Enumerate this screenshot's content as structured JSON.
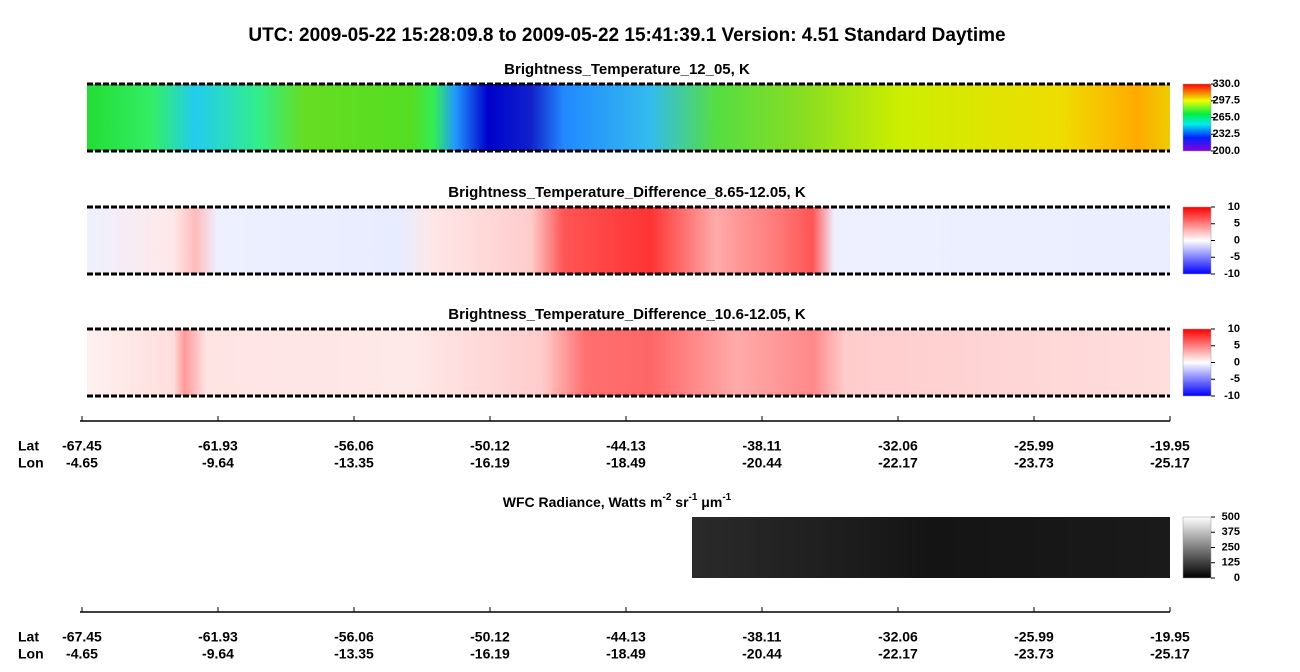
{
  "title": "UTC:  2009-05-22   15:28:09.8  to  2009-05-22   15:41:39.1    Version: 4.51  Standard Daytime",
  "panels": [
    {
      "title": "Brightness_Temperature_12_05, K",
      "clim": [
        200,
        330
      ],
      "cticks": [
        {
          "value": 330,
          "label": "330.0"
        },
        297.5,
        {
          "value": 265,
          "label": "265.0"
        },
        232.5,
        {
          "value": 200,
          "label": "200.0"
        }
      ]
    },
    {
      "title": "Brightness_Temperature_Difference_8.65-12.05, K",
      "clim": [
        -10,
        10
      ],
      "cticks": [
        10,
        5,
        0,
        -5,
        -10
      ]
    },
    {
      "title": "Brightness_Temperature_Difference_10.6-12.05, K",
      "clim": [
        -10,
        10
      ],
      "cticks": [
        10,
        5,
        0,
        -5,
        -10
      ]
    }
  ],
  "wfc": {
    "title_parts": [
      "WFC Radiance, Watts m",
      "-2",
      " sr",
      "-1",
      " μm",
      "-1"
    ],
    "clim": [
      0,
      500
    ],
    "cticks": [
      500,
      375,
      250,
      125,
      0
    ]
  },
  "track": {
    "lat_label": "Lat",
    "lon_label": "Lon",
    "lat": [
      -67.45,
      -61.93,
      -56.06,
      -50.12,
      -44.13,
      -38.11,
      -32.06,
      -25.99,
      -19.95
    ],
    "lon": [
      -4.65,
      -9.64,
      -13.35,
      -16.19,
      -18.49,
      -20.44,
      -22.17,
      -23.73,
      -25.17
    ]
  }
}
